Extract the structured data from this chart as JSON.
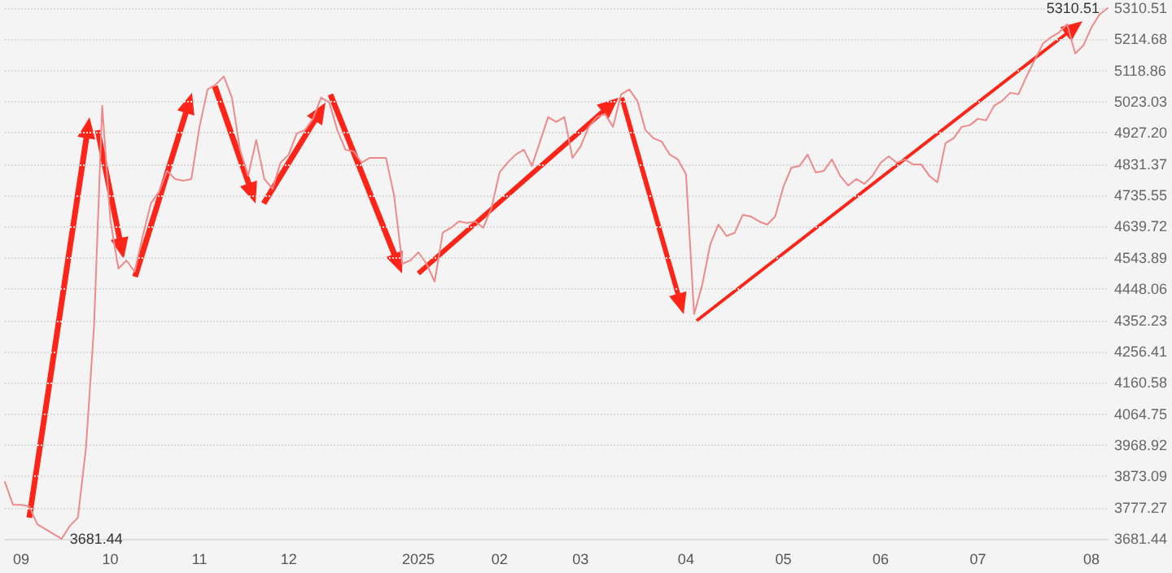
{
  "chart_data": {
    "type": "line",
    "categories": [
      null,
      null,
      "09",
      null,
      null,
      null,
      null,
      null,
      null,
      null,
      null,
      null,
      null,
      "10",
      null,
      null,
      null,
      null,
      null,
      null,
      null,
      null,
      null,
      null,
      "11",
      null,
      null,
      null,
      null,
      null,
      null,
      null,
      null,
      null,
      null,
      "12",
      null,
      null,
      null,
      null,
      null,
      null,
      null,
      null,
      null,
      null,
      null,
      null,
      null,
      null,
      null,
      "2025",
      null,
      null,
      null,
      null,
      null,
      null,
      null,
      null,
      null,
      "02",
      null,
      null,
      null,
      null,
      null,
      null,
      null,
      null,
      null,
      "03",
      null,
      null,
      null,
      null,
      null,
      null,
      null,
      null,
      null,
      null,
      null,
      null,
      "04",
      null,
      null,
      null,
      null,
      null,
      null,
      null,
      null,
      null,
      null,
      null,
      "05",
      null,
      null,
      null,
      null,
      null,
      null,
      null,
      null,
      null,
      null,
      null,
      "06",
      null,
      null,
      null,
      null,
      null,
      null,
      null,
      null,
      null,
      null,
      null,
      "07",
      null,
      null,
      null,
      null,
      null,
      null,
      null,
      null,
      null,
      null,
      null,
      null,
      null,
      "08",
      null,
      null
    ],
    "series": [
      {
        "color": "#ee8a8a",
        "values": [
          3856,
          3786,
          3786,
          3781,
          3726,
          3711,
          3696,
          3681.44,
          3721,
          3746,
          3961,
          4336,
          5011,
          4661,
          4511,
          4536,
          4501,
          4611,
          4711,
          4746,
          4811,
          4786,
          4781,
          4786,
          4946,
          5061,
          5076,
          5101,
          5036,
          4876,
          4796,
          4906,
          4786,
          4756,
          4836,
          4861,
          4926,
          4936,
          4971,
          5036,
          5021,
          4936,
          4876,
          4871,
          4836,
          4851,
          4851,
          4851,
          4736,
          4526,
          4536,
          4561,
          4526,
          4471,
          4621,
          4636,
          4656,
          4651,
          4656,
          4636,
          4696,
          4806,
          4836,
          4861,
          4876,
          4826,
          4901,
          4976,
          4961,
          4976,
          4851,
          4886,
          4946,
          4976,
          4986,
          4946,
          5046,
          5061,
          5026,
          4936,
          4911,
          4901,
          4861,
          4846,
          4801,
          4371,
          4461,
          4586,
          4646,
          4611,
          4621,
          4676,
          4671,
          4656,
          4646,
          4671,
          4761,
          4821,
          4826,
          4861,
          4806,
          4811,
          4846,
          4796,
          4766,
          4786,
          4771,
          4796,
          4836,
          4856,
          4836,
          4846,
          4831,
          4831,
          4796,
          4776,
          4896,
          4911,
          4946,
          4951,
          4971,
          4966,
          5011,
          5026,
          5051,
          5046,
          5101,
          5151,
          5201,
          5221,
          5236,
          5261,
          5171,
          5196,
          5251,
          5291,
          5310.51
        ],
        "value_labels": [
          null,
          null,
          null,
          null,
          null,
          null,
          null,
          "3681.44",
          null,
          null,
          null,
          null,
          null,
          null,
          null,
          null,
          null,
          null,
          null,
          null,
          null,
          null,
          null,
          null,
          null,
          null,
          null,
          null,
          null,
          null,
          null,
          null,
          null,
          null,
          null,
          null,
          null,
          null,
          null,
          null,
          null,
          null,
          null,
          null,
          null,
          null,
          null,
          null,
          null,
          null,
          null,
          null,
          null,
          null,
          null,
          null,
          null,
          null,
          null,
          null,
          null,
          null,
          null,
          null,
          null,
          null,
          null,
          null,
          null,
          null,
          null,
          null,
          null,
          null,
          null,
          null,
          null,
          null,
          null,
          null,
          null,
          null,
          null,
          null,
          null,
          null,
          null,
          null,
          null,
          null,
          null,
          null,
          null,
          null,
          null,
          null,
          null,
          null,
          null,
          null,
          null,
          null,
          null,
          null,
          null,
          null,
          null,
          null,
          null,
          null,
          null,
          null,
          null,
          null,
          null,
          null,
          null,
          null,
          null,
          null,
          null,
          null,
          null,
          null,
          null,
          null,
          null,
          null,
          null,
          null,
          null,
          null,
          null,
          null,
          null,
          null,
          "5310.51"
        ]
      }
    ],
    "ylim": [
      3681.44,
      5310.51
    ],
    "yticks": [
      3681.44,
      3777.27,
      3873.09,
      3968.92,
      4064.75,
      4160.58,
      4256.41,
      4352.23,
      4448.06,
      4543.89,
      4639.72,
      4735.55,
      4831.37,
      {
        "value": 4927.2,
        "label": "4927.20"
      },
      5023.03,
      5118.86,
      5214.68,
      5310.51
    ],
    "grid": "y",
    "marker": "none",
    "line_style": "solid"
  }
}
